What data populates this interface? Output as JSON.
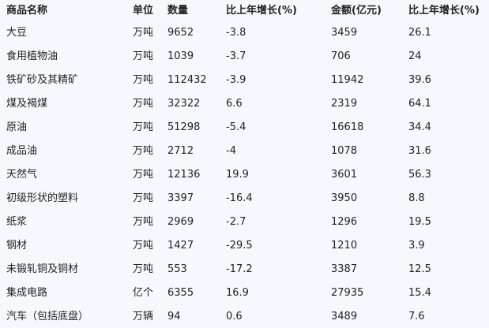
{
  "table": {
    "headers": [
      "商品名称",
      "单位",
      "数量",
      "比上年增长(%)",
      "金额(亿元)",
      "比上年增长(%)"
    ],
    "rows": [
      [
        "大豆",
        "万吨",
        "9652",
        "-3.8",
        "3459",
        "26.1"
      ],
      [
        "食用植物油",
        "万吨",
        "1039",
        "-3.7",
        "706",
        "24"
      ],
      [
        "铁矿砂及其精矿",
        "万吨",
        "112432",
        "-3.9",
        "11942",
        "39.6"
      ],
      [
        "煤及褐煤",
        "万吨",
        "32322",
        "6.6",
        "2319",
        "64.1"
      ],
      [
        "原油",
        "万吨",
        "51298",
        "-5.4",
        "16618",
        "34.4"
      ],
      [
        "成品油",
        "万吨",
        "2712",
        "-4",
        "1078",
        "31.6"
      ],
      [
        "天然气",
        "万吨",
        "12136",
        "19.9",
        "3601",
        "56.3"
      ],
      [
        "初级形状的塑料",
        "万吨",
        "3397",
        "-16.4",
        "3950",
        "8.8"
      ],
      [
        "纸浆",
        "万吨",
        "2969",
        "-2.7",
        "1296",
        "19.5"
      ],
      [
        "钢材",
        "万吨",
        "1427",
        "-29.5",
        "1210",
        "3.9"
      ],
      [
        "未锻轧铜及铜材",
        "万吨",
        "553",
        "-17.2",
        "3387",
        "12.5"
      ],
      [
        "集成电路",
        "亿个",
        "6355",
        "16.9",
        "27935",
        "15.4"
      ],
      [
        "汽车（包括底盘）",
        "万辆",
        "94",
        "0.6",
        "3489",
        "7.6"
      ]
    ]
  }
}
